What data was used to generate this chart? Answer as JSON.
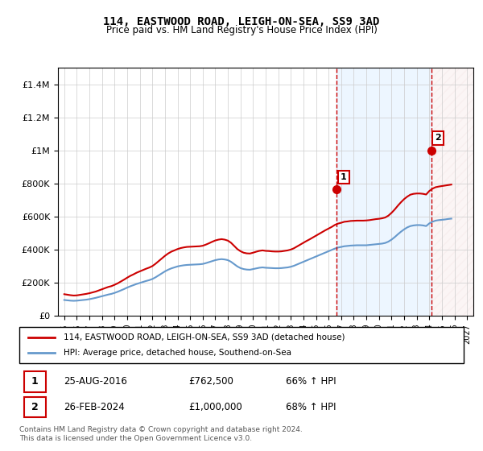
{
  "title": "114, EASTWOOD ROAD, LEIGH-ON-SEA, SS9 3AD",
  "subtitle": "Price paid vs. HM Land Registry's House Price Index (HPI)",
  "legend_line1": "114, EASTWOOD ROAD, LEIGH-ON-SEA, SS9 3AD (detached house)",
  "legend_line2": "HPI: Average price, detached house, Southend-on-Sea",
  "footnote": "Contains HM Land Registry data © Crown copyright and database right 2024.\nThis data is licensed under the Open Government Licence v3.0.",
  "sale1_label": "1",
  "sale1_date": "25-AUG-2016",
  "sale1_price": "£762,500",
  "sale1_hpi": "66% ↑ HPI",
  "sale2_label": "2",
  "sale2_date": "26-FEB-2024",
  "sale2_price": "£1,000,000",
  "sale2_hpi": "68% ↑ HPI",
  "red_color": "#cc0000",
  "blue_color": "#6699cc",
  "background_color": "#ffffff",
  "hatch_color": "#ddcccc",
  "shade1_color": "#ddeeff",
  "ylim": [
    0,
    1500000
  ],
  "yticks": [
    0,
    200000,
    400000,
    600000,
    800000,
    1000000,
    1200000,
    1400000
  ],
  "xlim_start": 1994.5,
  "xlim_end": 2027.5,
  "xticks": [
    1995,
    1996,
    1997,
    1998,
    1999,
    2000,
    2001,
    2002,
    2003,
    2004,
    2005,
    2006,
    2007,
    2008,
    2009,
    2010,
    2011,
    2012,
    2013,
    2014,
    2015,
    2016,
    2017,
    2018,
    2019,
    2020,
    2021,
    2022,
    2023,
    2024,
    2025,
    2026,
    2027
  ],
  "hpi_years": [
    1995.0,
    1995.25,
    1995.5,
    1995.75,
    1996.0,
    1996.25,
    1996.5,
    1996.75,
    1997.0,
    1997.25,
    1997.5,
    1997.75,
    1998.0,
    1998.25,
    1998.5,
    1998.75,
    1999.0,
    1999.25,
    1999.5,
    1999.75,
    2000.0,
    2000.25,
    2000.5,
    2000.75,
    2001.0,
    2001.25,
    2001.5,
    2001.75,
    2002.0,
    2002.25,
    2002.5,
    2002.75,
    2003.0,
    2003.25,
    2003.5,
    2003.75,
    2004.0,
    2004.25,
    2004.5,
    2004.75,
    2005.0,
    2005.25,
    2005.5,
    2005.75,
    2006.0,
    2006.25,
    2006.5,
    2006.75,
    2007.0,
    2007.25,
    2007.5,
    2007.75,
    2008.0,
    2008.25,
    2008.5,
    2008.75,
    2009.0,
    2009.25,
    2009.5,
    2009.75,
    2010.0,
    2010.25,
    2010.5,
    2010.75,
    2011.0,
    2011.25,
    2011.5,
    2011.75,
    2012.0,
    2012.25,
    2012.5,
    2012.75,
    2013.0,
    2013.25,
    2013.5,
    2013.75,
    2014.0,
    2014.25,
    2014.5,
    2014.75,
    2015.0,
    2015.25,
    2015.5,
    2015.75,
    2016.0,
    2016.25,
    2016.5,
    2016.75,
    2017.0,
    2017.25,
    2017.5,
    2017.75,
    2018.0,
    2018.25,
    2018.5,
    2018.75,
    2019.0,
    2019.25,
    2019.5,
    2019.75,
    2020.0,
    2020.25,
    2020.5,
    2020.75,
    2021.0,
    2021.25,
    2021.5,
    2021.75,
    2022.0,
    2022.25,
    2022.5,
    2022.75,
    2023.0,
    2023.25,
    2023.5,
    2023.75,
    2024.0,
    2024.25,
    2024.5,
    2024.75,
    2025.0,
    2025.25,
    2025.5,
    2025.75
  ],
  "hpi_values": [
    95000,
    93000,
    91000,
    90000,
    91000,
    93000,
    95000,
    97000,
    100000,
    104000,
    108000,
    113000,
    118000,
    123000,
    128000,
    132000,
    138000,
    145000,
    153000,
    161000,
    170000,
    178000,
    185000,
    192000,
    198000,
    204000,
    210000,
    215000,
    222000,
    232000,
    244000,
    256000,
    268000,
    278000,
    286000,
    292000,
    298000,
    302000,
    305000,
    307000,
    308000,
    309000,
    310000,
    311000,
    313000,
    318000,
    324000,
    330000,
    336000,
    340000,
    342000,
    340000,
    336000,
    326000,
    312000,
    298000,
    288000,
    282000,
    279000,
    278000,
    282000,
    286000,
    290000,
    292000,
    290000,
    289000,
    288000,
    287000,
    287000,
    288000,
    290000,
    292000,
    296000,
    302000,
    310000,
    318000,
    326000,
    334000,
    342000,
    350000,
    358000,
    366000,
    374000,
    382000,
    390000,
    398000,
    406000,
    412000,
    416000,
    420000,
    422000,
    424000,
    425000,
    426000,
    426000,
    426000,
    426000,
    428000,
    430000,
    432000,
    434000,
    436000,
    440000,
    448000,
    460000,
    475000,
    492000,
    508000,
    522000,
    534000,
    542000,
    546000,
    548000,
    548000,
    546000,
    542000,
    558000,
    568000,
    575000,
    578000,
    580000,
    582000,
    585000,
    587000
  ],
  "red_years": [
    1995.0,
    1995.25,
    1995.5,
    1995.75,
    1996.0,
    1996.25,
    1996.5,
    1996.75,
    1997.0,
    1997.25,
    1997.5,
    1997.75,
    1998.0,
    1998.25,
    1998.5,
    1998.75,
    1999.0,
    1999.25,
    1999.5,
    1999.75,
    2000.0,
    2000.25,
    2000.5,
    2000.75,
    2001.0,
    2001.25,
    2001.5,
    2001.75,
    2002.0,
    2002.25,
    2002.5,
    2002.75,
    2003.0,
    2003.25,
    2003.5,
    2003.75,
    2004.0,
    2004.25,
    2004.5,
    2004.75,
    2005.0,
    2005.25,
    2005.5,
    2005.75,
    2006.0,
    2006.25,
    2006.5,
    2006.75,
    2007.0,
    2007.25,
    2007.5,
    2007.75,
    2008.0,
    2008.25,
    2008.5,
    2008.75,
    2009.0,
    2009.25,
    2009.5,
    2009.75,
    2010.0,
    2010.25,
    2010.5,
    2010.75,
    2011.0,
    2011.25,
    2011.5,
    2011.75,
    2012.0,
    2012.25,
    2012.5,
    2012.75,
    2013.0,
    2013.25,
    2013.5,
    2013.75,
    2014.0,
    2014.25,
    2014.5,
    2014.75,
    2015.0,
    2015.25,
    2015.5,
    2015.75,
    2016.0,
    2016.25,
    2016.5,
    2016.75,
    2017.0,
    2017.25,
    2017.5,
    2017.75,
    2018.0,
    2018.25,
    2018.5,
    2018.75,
    2019.0,
    2019.25,
    2019.5,
    2019.75,
    2020.0,
    2020.25,
    2020.5,
    2020.75,
    2021.0,
    2021.25,
    2021.5,
    2021.75,
    2022.0,
    2022.25,
    2022.5,
    2022.75,
    2023.0,
    2023.25,
    2023.5,
    2023.75,
    2024.0,
    2024.25,
    2024.5,
    2024.75,
    2025.0,
    2025.25,
    2025.5,
    2025.75
  ],
  "red_values": [
    130000,
    127000,
    124000,
    122000,
    123000,
    126000,
    129000,
    132000,
    136000,
    141000,
    146000,
    153000,
    160000,
    167000,
    174000,
    179000,
    187000,
    196000,
    207000,
    218000,
    230000,
    241000,
    250000,
    260000,
    268000,
    276000,
    284000,
    291000,
    300000,
    314000,
    330000,
    346000,
    362000,
    376000,
    387000,
    395000,
    403000,
    409000,
    413000,
    416000,
    417000,
    418000,
    419000,
    420000,
    423000,
    430000,
    438000,
    447000,
    455000,
    460000,
    463000,
    460000,
    454000,
    441000,
    422000,
    403000,
    390000,
    381000,
    377000,
    376000,
    381000,
    387000,
    392000,
    395000,
    392000,
    391000,
    389000,
    388000,
    388000,
    389000,
    392000,
    395000,
    400000,
    408000,
    419000,
    430000,
    441000,
    452000,
    462000,
    473000,
    484000,
    495000,
    506000,
    517000,
    527000,
    537000,
    549000,
    557000,
    562000,
    568000,
    570000,
    573000,
    574000,
    575000,
    575000,
    575000,
    576000,
    578000,
    581000,
    584000,
    586000,
    589000,
    594000,
    605000,
    622000,
    642000,
    665000,
    686000,
    705000,
    720000,
    732000,
    737000,
    739000,
    739000,
    737000,
    733000,
    754000,
    768000,
    777000,
    781000,
    784000,
    787000,
    790000,
    793000
  ],
  "sale1_x": 2016.65,
  "sale1_y": 762500,
  "sale2_x": 2024.15,
  "sale2_y": 1000000,
  "vline1_x": 2016.65,
  "vline2_x": 2024.15,
  "shade1_start": 2016.65,
  "shade1_end": 2024.15,
  "shade2_start": 2024.15,
  "shade2_end": 2027.5
}
